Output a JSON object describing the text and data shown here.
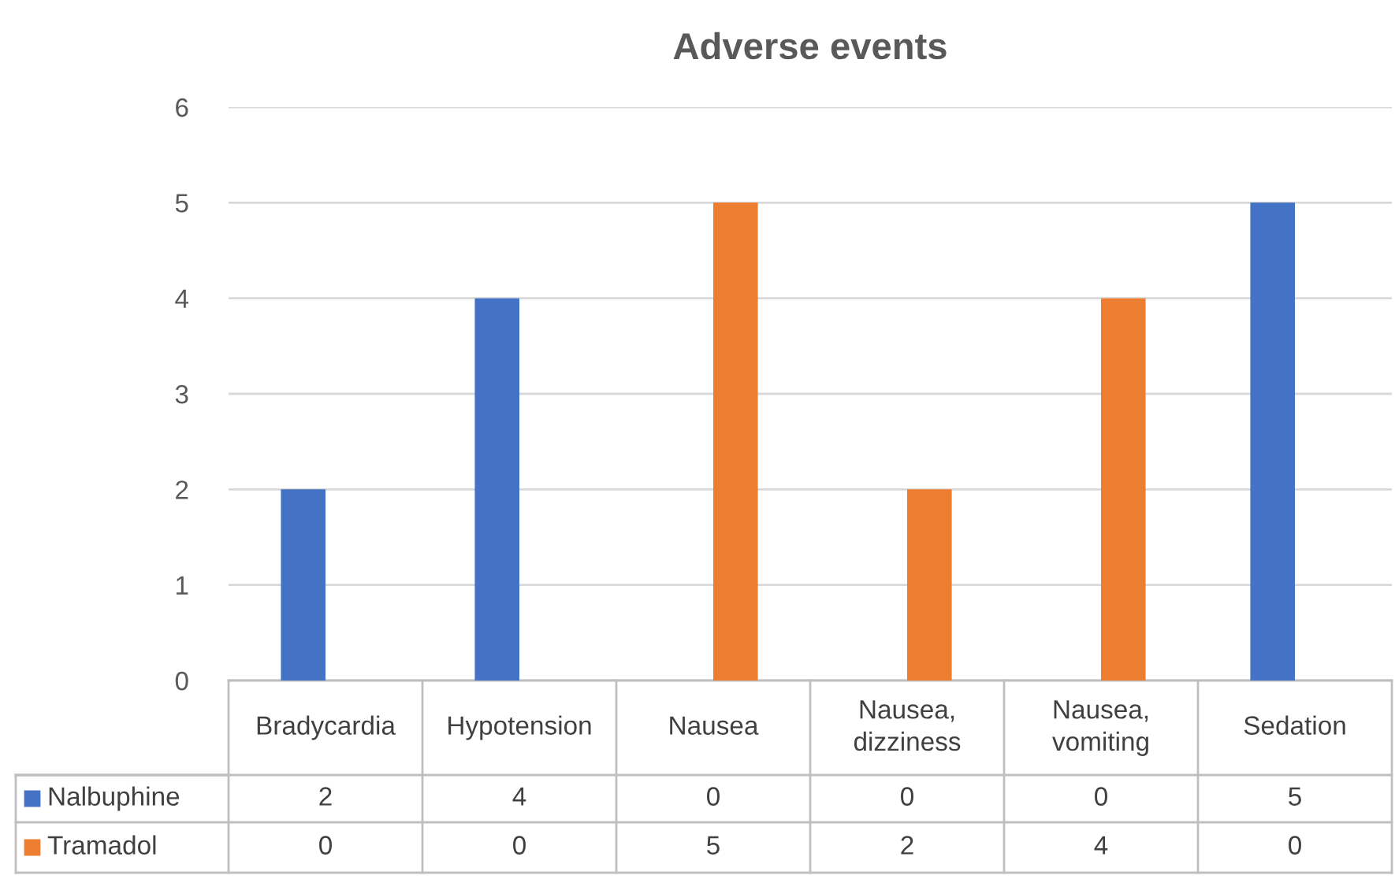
{
  "chart_data": {
    "type": "bar",
    "title": "Adverse events",
    "categories": [
      "Bradycardia",
      "Hypotension",
      "Nausea",
      "Nausea, dizziness",
      "Nausea, vomiting",
      "Sedation"
    ],
    "series": [
      {
        "name": "Nalbuphine",
        "color": "#4472c4",
        "values": [
          2,
          4,
          0,
          0,
          0,
          5
        ]
      },
      {
        "name": "Tramadol",
        "color": "#ed7d31",
        "values": [
          0,
          0,
          5,
          2,
          4,
          0
        ]
      }
    ],
    "ylim": [
      0,
      6
    ],
    "yticks": [
      0,
      1,
      2,
      3,
      4,
      5,
      6
    ],
    "grid": "y",
    "legend": "bottom",
    "data_labels": true
  }
}
